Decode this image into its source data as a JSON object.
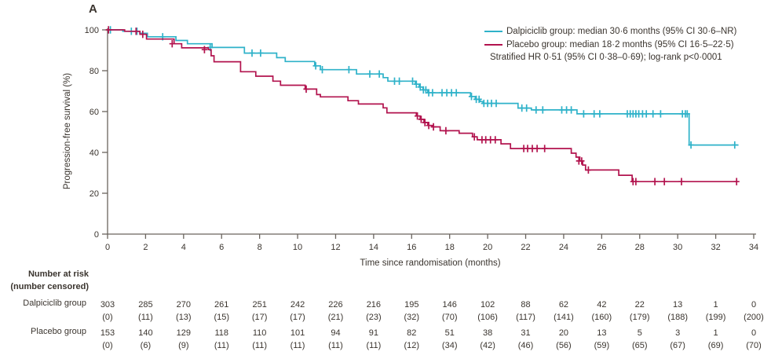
{
  "panel_label": "A",
  "colors": {
    "dalpiciclib": "#2fb2c9",
    "placebo": "#b2134e",
    "axis": "#6a645e",
    "text": "#3a342e"
  },
  "legend": {
    "items": [
      {
        "label": "Dalpiciclib group: median 30·6 months (95% CI 30·6–NR)"
      },
      {
        "label": "Placebo group: median 18·2 months (95% CI 16·5–22·5)"
      }
    ],
    "footnote": "Stratified HR 0·51 (95% CI 0·38–0·69); log-rank p<0·0001"
  },
  "chart_data": {
    "type": "line",
    "subtype": "kaplan-meier-step",
    "xlabel": "Time since randomisation (months)",
    "ylabel": "Progression-free survival (%)",
    "xlim": [
      0,
      34
    ],
    "ylim": [
      0,
      100
    ],
    "xticks": [
      0,
      2,
      4,
      6,
      8,
      10,
      12,
      14,
      16,
      18,
      20,
      22,
      24,
      26,
      28,
      30,
      32,
      34
    ],
    "yticks": [
      0,
      20,
      40,
      60,
      80,
      100
    ],
    "grid": false,
    "legend_position": "top-right",
    "series": [
      {
        "id": "dalpiciclib-group",
        "name": "Dalpiciclib group",
        "color": "#2fb2c9",
        "steps": [
          [
            0,
            100
          ],
          [
            0.8,
            99.3
          ],
          [
            1.7,
            98.3
          ],
          [
            2.1,
            96.6
          ],
          [
            3.6,
            94.8
          ],
          [
            4.2,
            93.2
          ],
          [
            5.5,
            91.4
          ],
          [
            7.2,
            88.6
          ],
          [
            8.9,
            86.4
          ],
          [
            9.35,
            84.5
          ],
          [
            10.9,
            82.4
          ],
          [
            11.2,
            80.5
          ],
          [
            13.1,
            78.4
          ],
          [
            14.5,
            76.6
          ],
          [
            14.75,
            74.9
          ],
          [
            16.2,
            73.4
          ],
          [
            16.4,
            72.0
          ],
          [
            16.6,
            70.6
          ],
          [
            16.85,
            69.2
          ],
          [
            19.1,
            67.4
          ],
          [
            19.35,
            66.0
          ],
          [
            19.6,
            64.9
          ],
          [
            19.75,
            64.0
          ],
          [
            21.6,
            61.7
          ],
          [
            22.3,
            60.8
          ],
          [
            24.7,
            58.9
          ],
          [
            30.6,
            43.6
          ],
          [
            33.2,
            43.6
          ]
        ],
        "censor_marks": [
          [
            0.15,
            100
          ],
          [
            1.25,
            99.3
          ],
          [
            1.55,
            99.3
          ],
          [
            2.9,
            96.6
          ],
          [
            5.4,
            91.4
          ],
          [
            7.6,
            88.6
          ],
          [
            8.05,
            88.6
          ],
          [
            10.95,
            82.4
          ],
          [
            11.3,
            80.5
          ],
          [
            12.7,
            80.5
          ],
          [
            13.8,
            78.4
          ],
          [
            14.3,
            78.4
          ],
          [
            15.1,
            74.9
          ],
          [
            15.35,
            74.9
          ],
          [
            16.05,
            74.9
          ],
          [
            16.25,
            73.4
          ],
          [
            16.45,
            72.0
          ],
          [
            16.62,
            70.6
          ],
          [
            16.75,
            70.6
          ],
          [
            16.9,
            69.2
          ],
          [
            17.1,
            69.2
          ],
          [
            17.6,
            69.2
          ],
          [
            17.85,
            69.2
          ],
          [
            18.1,
            69.2
          ],
          [
            18.35,
            69.2
          ],
          [
            19.15,
            67.4
          ],
          [
            19.4,
            66.0
          ],
          [
            19.55,
            66.0
          ],
          [
            19.8,
            64.0
          ],
          [
            20.0,
            64.0
          ],
          [
            20.2,
            64.0
          ],
          [
            20.45,
            64.0
          ],
          [
            21.8,
            61.7
          ],
          [
            22.05,
            61.7
          ],
          [
            22.55,
            60.8
          ],
          [
            22.9,
            60.8
          ],
          [
            23.9,
            60.8
          ],
          [
            24.15,
            60.8
          ],
          [
            24.4,
            60.8
          ],
          [
            25.05,
            58.9
          ],
          [
            25.6,
            58.9
          ],
          [
            25.9,
            58.9
          ],
          [
            27.35,
            58.9
          ],
          [
            27.5,
            58.9
          ],
          [
            27.65,
            58.9
          ],
          [
            27.8,
            58.9
          ],
          [
            27.95,
            58.9
          ],
          [
            28.15,
            58.9
          ],
          [
            28.35,
            58.9
          ],
          [
            28.7,
            58.9
          ],
          [
            29.1,
            58.9
          ],
          [
            30.25,
            58.9
          ],
          [
            30.4,
            58.9
          ],
          [
            30.5,
            58.9
          ],
          [
            30.7,
            43.6
          ],
          [
            33.0,
            43.6
          ]
        ]
      },
      {
        "id": "placebo-group",
        "name": "Placebo group",
        "color": "#b2134e",
        "steps": [
          [
            0,
            100
          ],
          [
            0.9,
            99.3
          ],
          [
            1.7,
            97.8
          ],
          [
            2.05,
            95.5
          ],
          [
            3.5,
            93.2
          ],
          [
            3.9,
            91.2
          ],
          [
            5.3,
            90.3
          ],
          [
            5.45,
            87.3
          ],
          [
            5.6,
            84.4
          ],
          [
            7.0,
            79.5
          ],
          [
            7.8,
            77.3
          ],
          [
            8.7,
            74.9
          ],
          [
            9.1,
            72.9
          ],
          [
            10.4,
            71.0
          ],
          [
            11.0,
            68.3
          ],
          [
            11.2,
            67.2
          ],
          [
            12.65,
            65.3
          ],
          [
            13.2,
            63.7
          ],
          [
            14.5,
            61.8
          ],
          [
            14.7,
            59.4
          ],
          [
            16.25,
            57.8
          ],
          [
            16.45,
            56.2
          ],
          [
            16.65,
            54.6
          ],
          [
            16.85,
            53.2
          ],
          [
            17.1,
            52.5
          ],
          [
            17.5,
            50.6
          ],
          [
            18.5,
            49.4
          ],
          [
            19.2,
            47.6
          ],
          [
            19.45,
            46.2
          ],
          [
            20.7,
            44.2
          ],
          [
            21.2,
            41.9
          ],
          [
            24.4,
            39.6
          ],
          [
            24.65,
            37.7
          ],
          [
            24.85,
            35.8
          ],
          [
            25.0,
            33.8
          ],
          [
            25.15,
            31.4
          ],
          [
            26.9,
            28.8
          ],
          [
            27.6,
            25.7
          ],
          [
            33.1,
            25.7
          ]
        ],
        "censor_marks": [
          [
            0.05,
            100
          ],
          [
            1.5,
            99.3
          ],
          [
            1.85,
            97.8
          ],
          [
            3.4,
            93.2
          ],
          [
            5.1,
            90.3
          ],
          [
            10.45,
            71.0
          ],
          [
            16.3,
            57.8
          ],
          [
            16.5,
            56.2
          ],
          [
            16.7,
            54.6
          ],
          [
            16.9,
            53.2
          ],
          [
            17.15,
            52.5
          ],
          [
            17.8,
            50.6
          ],
          [
            19.3,
            47.6
          ],
          [
            19.7,
            46.2
          ],
          [
            19.9,
            46.2
          ],
          [
            20.15,
            46.2
          ],
          [
            20.4,
            46.2
          ],
          [
            21.9,
            41.9
          ],
          [
            22.1,
            41.9
          ],
          [
            22.35,
            41.9
          ],
          [
            22.6,
            41.9
          ],
          [
            23.0,
            41.9
          ],
          [
            24.8,
            35.8
          ],
          [
            24.95,
            35.8
          ],
          [
            25.3,
            31.4
          ],
          [
            27.65,
            25.7
          ],
          [
            27.8,
            25.7
          ],
          [
            28.8,
            25.7
          ],
          [
            29.3,
            25.7
          ],
          [
            30.2,
            25.7
          ],
          [
            33.1,
            25.7
          ]
        ]
      }
    ]
  },
  "risk_table": {
    "header_line1": "Number at risk",
    "header_line2": "(number censored)",
    "time_points": [
      0,
      2,
      4,
      6,
      8,
      10,
      12,
      14,
      16,
      18,
      20,
      22,
      24,
      26,
      28,
      30,
      32,
      34
    ],
    "rows": [
      {
        "label": "Dalpiciclib group",
        "at_risk": [
          303,
          285,
          270,
          261,
          251,
          242,
          226,
          216,
          195,
          146,
          102,
          88,
          62,
          42,
          22,
          13,
          1,
          0
        ],
        "censored": [
          "(0)",
          "(11)",
          "(13)",
          "(15)",
          "(17)",
          "(17)",
          "(21)",
          "(23)",
          "(32)",
          "(70)",
          "(106)",
          "(117)",
          "(141)",
          "(160)",
          "(179)",
          "(188)",
          "(199)",
          "(200)"
        ]
      },
      {
        "label": "Placebo group",
        "at_risk": [
          153,
          140,
          129,
          118,
          110,
          101,
          94,
          91,
          82,
          51,
          38,
          31,
          20,
          13,
          5,
          3,
          1,
          0
        ],
        "censored": [
          "(0)",
          "(6)",
          "(9)",
          "(11)",
          "(11)",
          "(11)",
          "(11)",
          "(11)",
          "(12)",
          "(34)",
          "(42)",
          "(46)",
          "(56)",
          "(59)",
          "(65)",
          "(67)",
          "(69)",
          "(70)"
        ]
      }
    ]
  }
}
